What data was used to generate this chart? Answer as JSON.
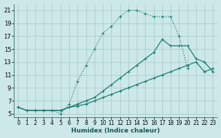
{
  "xlabel": "Humidex (Indice chaleur)",
  "bg_color": "#cce8e8",
  "grid_color": "#b0d0d0",
  "line_color": "#1a7a6e",
  "xlim": [
    -0.5,
    23.5
  ],
  "ylim": [
    4.5,
    22
  ],
  "yticks": [
    5,
    7,
    9,
    11,
    13,
    15,
    17,
    19,
    21
  ],
  "xticks": [
    0,
    1,
    2,
    3,
    4,
    5,
    6,
    7,
    8,
    9,
    10,
    11,
    12,
    13,
    14,
    15,
    16,
    17,
    18,
    19,
    20,
    21,
    22,
    23
  ],
  "line1_x": [
    0,
    1,
    2,
    3,
    4,
    5,
    6,
    7,
    8,
    9,
    10,
    11,
    12,
    13,
    14,
    15,
    16,
    17,
    18,
    19,
    20
  ],
  "line1_y": [
    6,
    5.5,
    5.5,
    5.5,
    5.5,
    5.0,
    6.5,
    10.0,
    12.5,
    15.0,
    17.5,
    18.5,
    20.0,
    21.0,
    21.0,
    20.5,
    20.0,
    20.0,
    20.0,
    17.0,
    12.0
  ],
  "line2_x": [
    0,
    1,
    2,
    3,
    4,
    5,
    6,
    7,
    8,
    9,
    10,
    11,
    12,
    13,
    14,
    15,
    16,
    17,
    18,
    19,
    20,
    21,
    22,
    23
  ],
  "line2_y": [
    6.0,
    5.5,
    5.5,
    5.5,
    5.5,
    5.5,
    6.0,
    6.5,
    7.0,
    7.5,
    8.5,
    9.5,
    10.5,
    11.5,
    12.5,
    13.5,
    14.5,
    16.5,
    15.5,
    15.5,
    15.5,
    13.5,
    13.0,
    11.5
  ],
  "line3_x": [
    0,
    1,
    2,
    3,
    4,
    5,
    6,
    7,
    8,
    9,
    10,
    11,
    12,
    13,
    14,
    15,
    16,
    17,
    18,
    19,
    20,
    21,
    22,
    23
  ],
  "line3_y": [
    6.0,
    5.5,
    5.5,
    5.5,
    5.5,
    5.5,
    6.0,
    6.2,
    6.5,
    7.0,
    7.5,
    8.0,
    8.5,
    9.0,
    9.5,
    10.0,
    10.5,
    11.0,
    11.5,
    12.0,
    12.5,
    13.0,
    11.5,
    12.0
  ]
}
